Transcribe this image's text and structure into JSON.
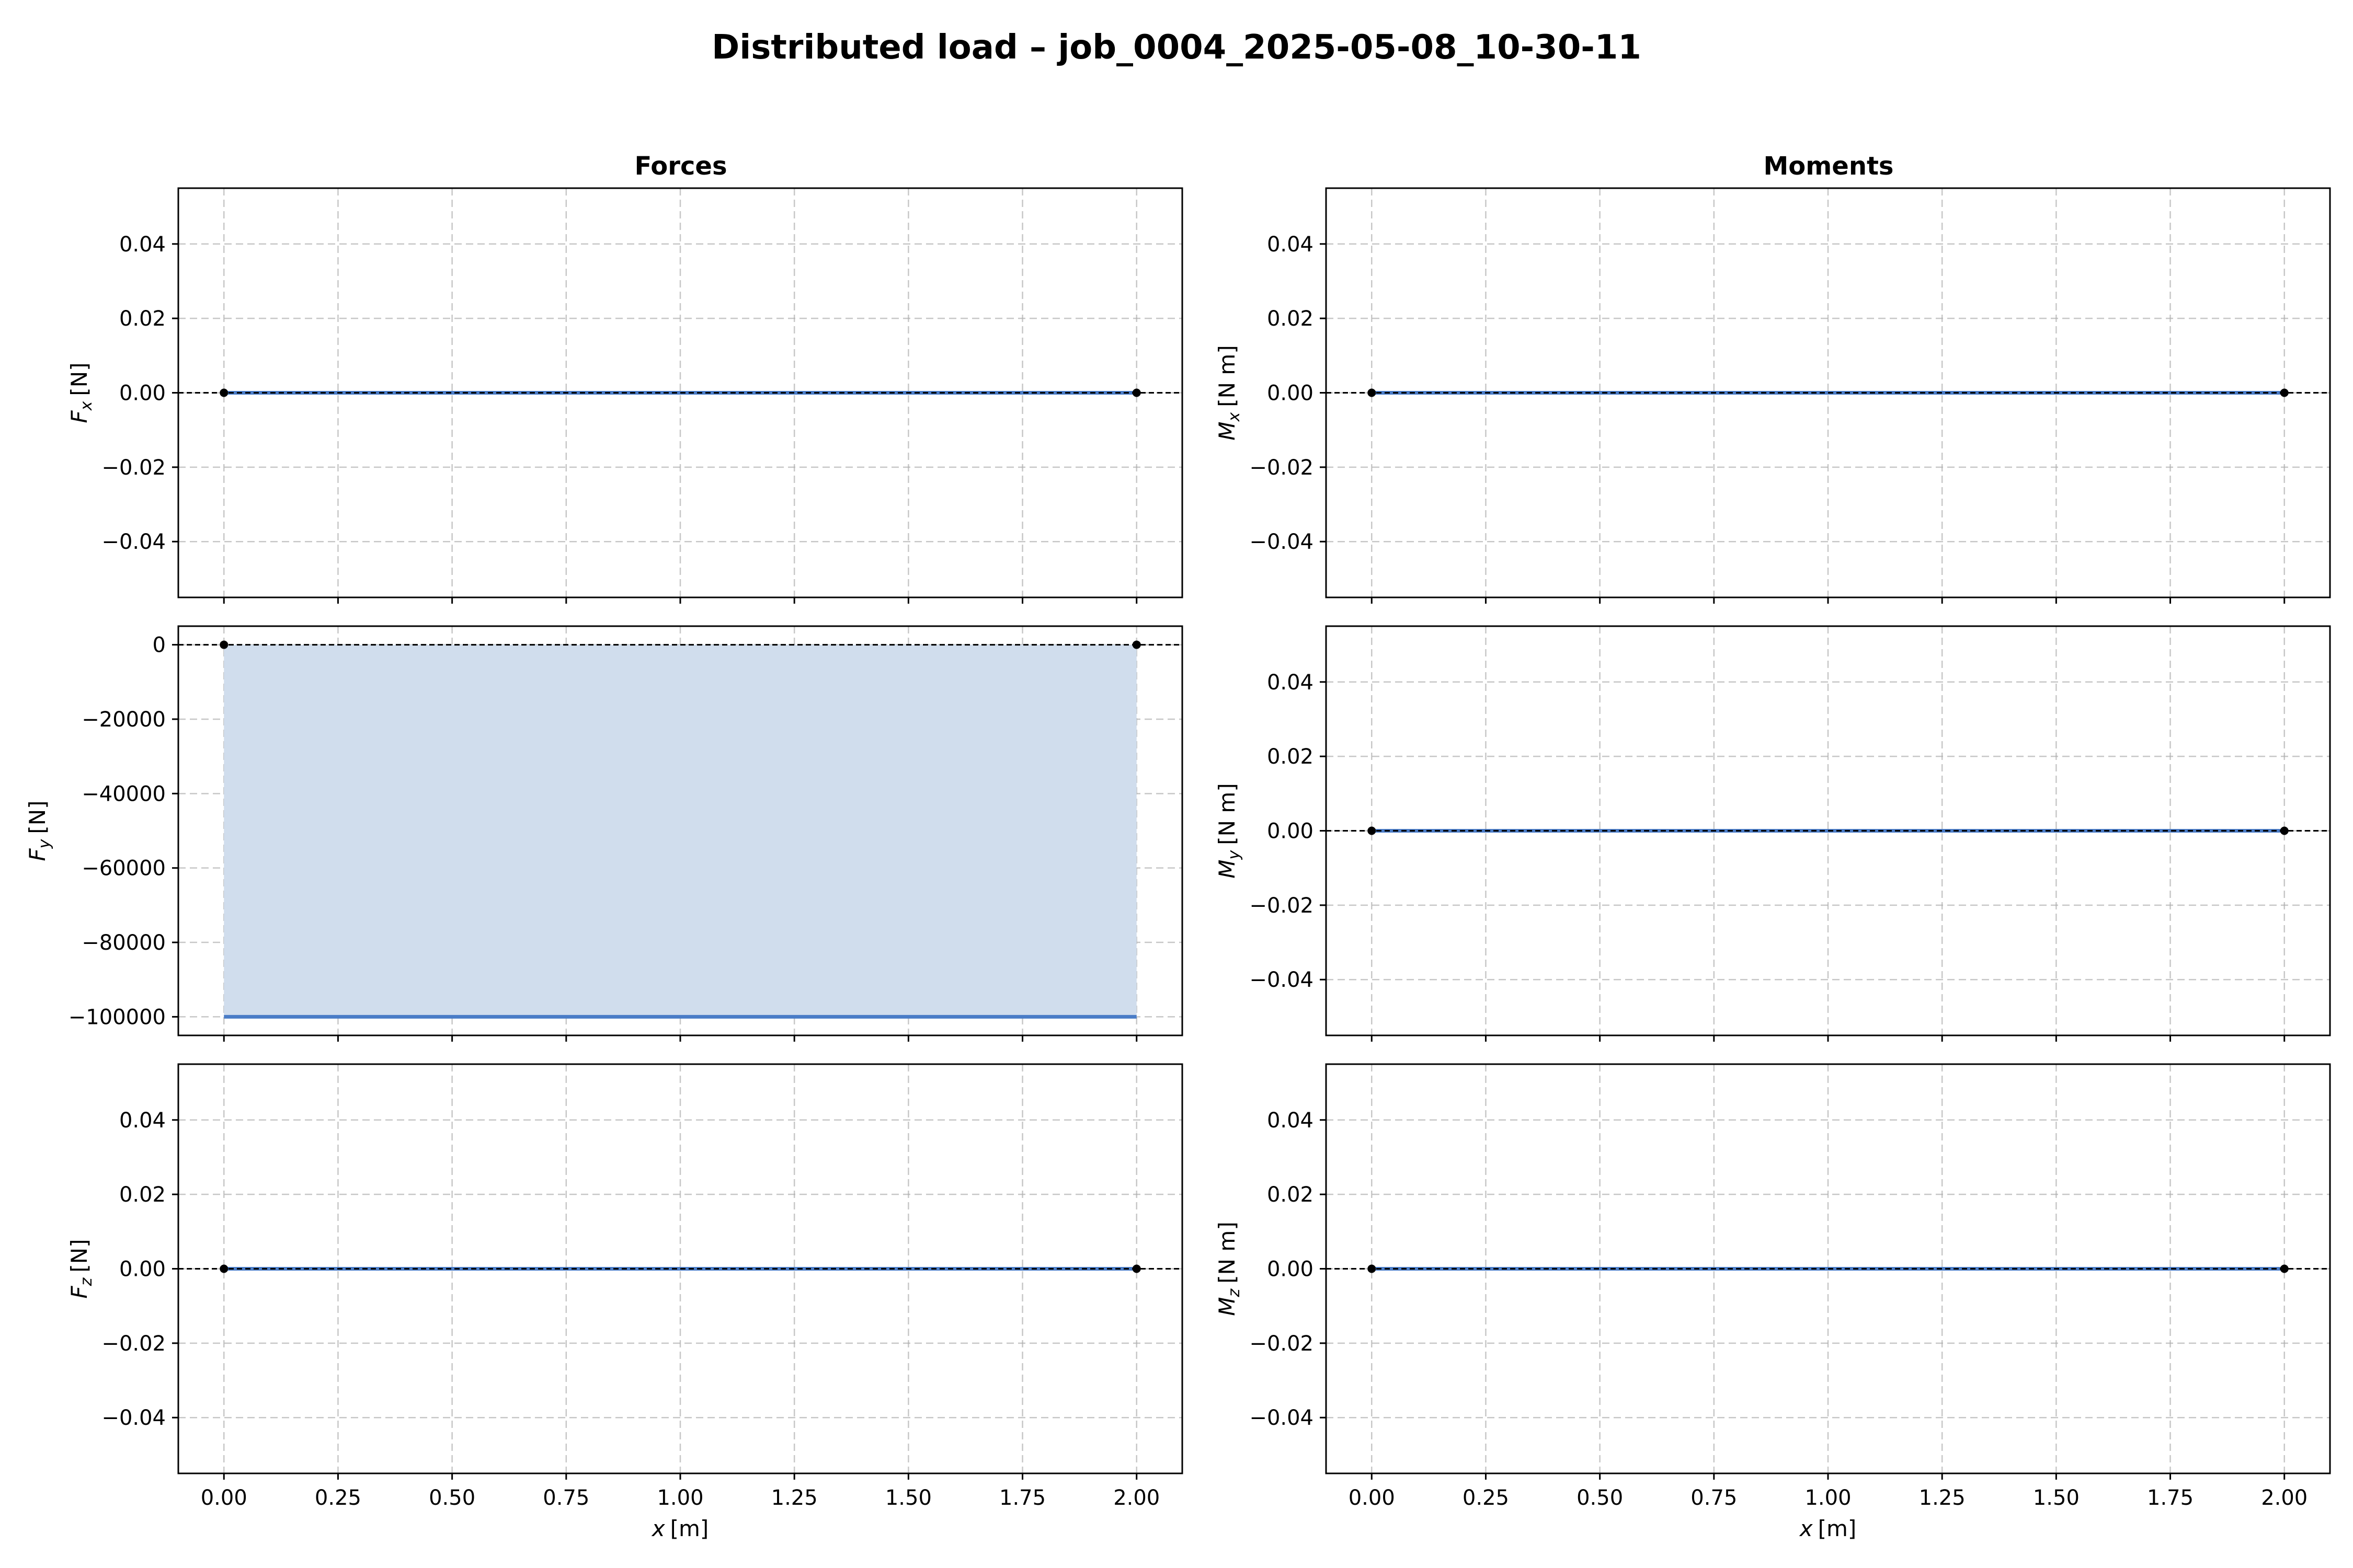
{
  "figure": {
    "title": "Distributed load – job_0004_2025-05-08_10-30-11",
    "columns": [
      "Forces",
      "Moments"
    ],
    "colors": {
      "series": "#4a7cc7",
      "fill": "#d0dded",
      "marker": "#000000"
    }
  },
  "chart_data": [
    {
      "type": "line",
      "column": "Forces",
      "ylabel_symbol": "F",
      "ylabel_sub": "x",
      "ylabel_unit": "[N]",
      "xlabel": "",
      "x": [
        0.0,
        2.0
      ],
      "y": [
        0.0,
        0.0
      ],
      "xlim": [
        -0.1,
        2.1
      ],
      "ylim": [
        -0.055,
        0.055
      ],
      "xticks": [
        0,
        0.25,
        0.5,
        0.75,
        1.0,
        1.25,
        1.5,
        1.75,
        2.0
      ],
      "xtick_labels": [],
      "yticks": [
        -0.04,
        -0.02,
        0.0,
        0.02,
        0.04
      ],
      "ytick_labels": [
        "−0.04",
        "−0.02",
        "0.00",
        "0.02",
        "0.04"
      ],
      "fill": false,
      "grid": true
    },
    {
      "type": "line",
      "column": "Moments",
      "ylabel_symbol": "M",
      "ylabel_sub": "x",
      "ylabel_unit": "[N m]",
      "xlabel": "",
      "x": [
        0.0,
        2.0
      ],
      "y": [
        0.0,
        0.0
      ],
      "xlim": [
        -0.1,
        2.1
      ],
      "ylim": [
        -0.055,
        0.055
      ],
      "xticks": [
        0,
        0.25,
        0.5,
        0.75,
        1.0,
        1.25,
        1.5,
        1.75,
        2.0
      ],
      "xtick_labels": [],
      "yticks": [
        -0.04,
        -0.02,
        0.0,
        0.02,
        0.04
      ],
      "ytick_labels": [
        "−0.04",
        "−0.02",
        "0.00",
        "0.02",
        "0.04"
      ],
      "fill": false,
      "grid": true
    },
    {
      "type": "area",
      "column": "Forces",
      "ylabel_symbol": "F",
      "ylabel_sub": "y",
      "ylabel_unit": "[N]",
      "xlabel": "",
      "x": [
        0.0,
        2.0
      ],
      "y": [
        -100000,
        -100000
      ],
      "xlim": [
        -0.1,
        2.1
      ],
      "ylim": [
        -105000,
        5000
      ],
      "xticks": [
        0,
        0.25,
        0.5,
        0.75,
        1.0,
        1.25,
        1.5,
        1.75,
        2.0
      ],
      "xtick_labels": [],
      "yticks": [
        -100000,
        -80000,
        -60000,
        -40000,
        -20000,
        0
      ],
      "ytick_labels": [
        "−100000",
        "−80000",
        "−60000",
        "−40000",
        "−20000",
        "0"
      ],
      "fill": true,
      "grid": true
    },
    {
      "type": "line",
      "column": "Moments",
      "ylabel_symbol": "M",
      "ylabel_sub": "y",
      "ylabel_unit": "[N m]",
      "xlabel": "",
      "x": [
        0.0,
        2.0
      ],
      "y": [
        0.0,
        0.0
      ],
      "xlim": [
        -0.1,
        2.1
      ],
      "ylim": [
        -0.055,
        0.055
      ],
      "xticks": [
        0,
        0.25,
        0.5,
        0.75,
        1.0,
        1.25,
        1.5,
        1.75,
        2.0
      ],
      "xtick_labels": [],
      "yticks": [
        -0.04,
        -0.02,
        0.0,
        0.02,
        0.04
      ],
      "ytick_labels": [
        "−0.04",
        "−0.02",
        "0.00",
        "0.02",
        "0.04"
      ],
      "fill": false,
      "grid": true
    },
    {
      "type": "line",
      "column": "Forces",
      "ylabel_symbol": "F",
      "ylabel_sub": "z",
      "ylabel_unit": "[N]",
      "xlabel_symbol": "x",
      "xlabel_unit": "[m]",
      "x": [
        0.0,
        2.0
      ],
      "y": [
        0.0,
        0.0
      ],
      "xlim": [
        -0.1,
        2.1
      ],
      "ylim": [
        -0.055,
        0.055
      ],
      "xticks": [
        0,
        0.25,
        0.5,
        0.75,
        1.0,
        1.25,
        1.5,
        1.75,
        2.0
      ],
      "xtick_labels": [
        "0.00",
        "0.25",
        "0.50",
        "0.75",
        "1.00",
        "1.25",
        "1.50",
        "1.75",
        "2.00"
      ],
      "yticks": [
        -0.04,
        -0.02,
        0.0,
        0.02,
        0.04
      ],
      "ytick_labels": [
        "−0.04",
        "−0.02",
        "0.00",
        "0.02",
        "0.04"
      ],
      "fill": false,
      "grid": true
    },
    {
      "type": "line",
      "column": "Moments",
      "ylabel_symbol": "M",
      "ylabel_sub": "z",
      "ylabel_unit": "[N m]",
      "xlabel_symbol": "x",
      "xlabel_unit": "[m]",
      "x": [
        0.0,
        2.0
      ],
      "y": [
        0.0,
        0.0
      ],
      "xlim": [
        -0.1,
        2.1
      ],
      "ylim": [
        -0.055,
        0.055
      ],
      "xticks": [
        0,
        0.25,
        0.5,
        0.75,
        1.0,
        1.25,
        1.5,
        1.75,
        2.0
      ],
      "xtick_labels": [
        "0.00",
        "0.25",
        "0.50",
        "0.75",
        "1.00",
        "1.25",
        "1.50",
        "1.75",
        "2.00"
      ],
      "yticks": [
        -0.04,
        -0.02,
        0.0,
        0.02,
        0.04
      ],
      "ytick_labels": [
        "−0.04",
        "−0.02",
        "0.00",
        "0.02",
        "0.04"
      ],
      "fill": false,
      "grid": true
    }
  ]
}
